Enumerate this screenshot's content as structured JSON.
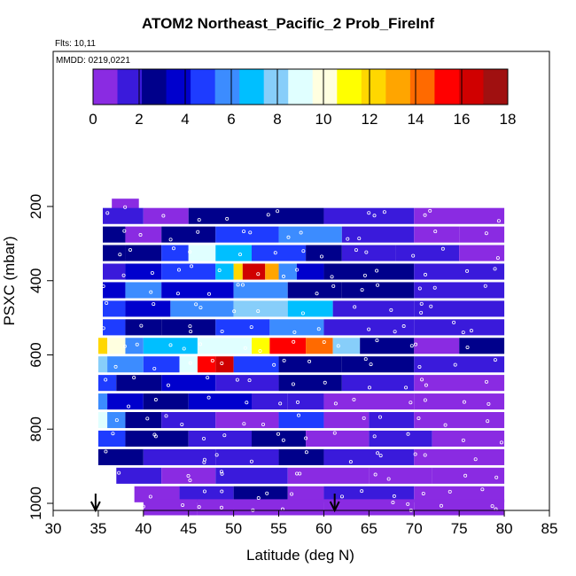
{
  "chart_data": {
    "type": "heatmap",
    "title": "ATOM2 Northeast_Pacific_2 Prob_FireInf",
    "note_flights": "Flts: 10,11",
    "note_dates": "MMDD: 0219,0221",
    "xlabel": "Latitude (deg N)",
    "ylabel": "PSXC (mbar)",
    "xlim": [
      30,
      85
    ],
    "ylim": [
      1000,
      80
    ],
    "y_inverted": true,
    "x_ticks": [
      30,
      35,
      40,
      45,
      50,
      55,
      60,
      65,
      70,
      75,
      80,
      85
    ],
    "y_ticks": [
      200,
      400,
      600,
      800,
      1000
    ],
    "colorbar": {
      "min": 0,
      "max": 18,
      "ticks": [
        0,
        2,
        4,
        6,
        8,
        10,
        12,
        14,
        16,
        18
      ],
      "colors": [
        "#8a2be2",
        "#3a1adb",
        "#00008b",
        "#0000cd",
        "#1e3cff",
        "#3c8cff",
        "#00bfff",
        "#87cefa",
        "#e0ffff",
        "#ffffe0",
        "#ffff00",
        "#ffd700",
        "#ffa500",
        "#ff6a00",
        "#ff0000",
        "#d00000",
        "#a01010"
      ]
    },
    "arrow_markers_lat": [
      34.7,
      61.2
    ],
    "rows": [
      {
        "p": 200,
        "cells": [
          [
            36.5,
            39.5,
            0.5
          ]
        ]
      },
      {
        "p": 225,
        "cells": [
          [
            35.5,
            40,
            1.5
          ],
          [
            40,
            45,
            0.8
          ],
          [
            45,
            60,
            2.5
          ],
          [
            60,
            70,
            2
          ],
          [
            70,
            80,
            0.8
          ]
        ]
      },
      {
        "p": 275,
        "cells": [
          [
            35.5,
            38,
            2.5
          ],
          [
            38,
            42,
            1
          ],
          [
            42,
            48,
            3
          ],
          [
            48,
            55,
            5
          ],
          [
            55,
            62,
            6
          ],
          [
            62,
            70,
            2
          ],
          [
            70,
            75,
            1
          ],
          [
            75,
            80,
            0.5
          ]
        ]
      },
      {
        "p": 325,
        "cells": [
          [
            35.5,
            38,
            3
          ],
          [
            38,
            42,
            2.5
          ],
          [
            42,
            45,
            5
          ],
          [
            45,
            48,
            8.5
          ],
          [
            48,
            52,
            7
          ],
          [
            52,
            58,
            5
          ],
          [
            58,
            62,
            3
          ],
          [
            62,
            68,
            2
          ],
          [
            68,
            75,
            1.5
          ],
          [
            75,
            80,
            0.8
          ]
        ]
      },
      {
        "p": 375,
        "cells": [
          [
            35.5,
            38,
            2
          ],
          [
            38,
            42,
            3.5
          ],
          [
            42,
            48,
            5
          ],
          [
            48,
            50,
            7
          ],
          [
            50,
            51,
            12
          ],
          [
            51,
            53.5,
            16
          ],
          [
            53.5,
            55,
            13
          ],
          [
            55,
            57,
            6
          ],
          [
            57,
            60,
            4
          ],
          [
            60,
            70,
            3
          ],
          [
            70,
            80,
            2
          ]
        ]
      },
      {
        "p": 425,
        "cells": [
          [
            35.5,
            38,
            4
          ],
          [
            38,
            42,
            6
          ],
          [
            42,
            50,
            4
          ],
          [
            50,
            56,
            5.5
          ],
          [
            56,
            62,
            3
          ],
          [
            62,
            70,
            2.5
          ],
          [
            70,
            80,
            1.5
          ]
        ]
      },
      {
        "p": 475,
        "cells": [
          [
            35.5,
            38,
            5
          ],
          [
            38,
            43,
            4
          ],
          [
            43,
            50,
            6
          ],
          [
            50,
            56,
            8
          ],
          [
            56,
            61,
            6.5
          ],
          [
            61,
            70,
            2
          ],
          [
            70,
            80,
            1.5
          ]
        ]
      },
      {
        "p": 525,
        "cells": [
          [
            35.5,
            38,
            5
          ],
          [
            38,
            42,
            3
          ],
          [
            42,
            48,
            2.5
          ],
          [
            48,
            54,
            5
          ],
          [
            54,
            60,
            6
          ],
          [
            60,
            70,
            2
          ],
          [
            70,
            80,
            1.5
          ]
        ]
      },
      {
        "p": 575,
        "cells": [
          [
            35,
            36,
            12
          ],
          [
            36,
            38,
            10
          ],
          [
            38,
            40,
            6
          ],
          [
            40,
            46,
            7
          ],
          [
            46,
            52,
            8.5
          ],
          [
            52,
            54,
            11
          ],
          [
            54,
            58,
            15
          ],
          [
            58,
            61,
            14
          ],
          [
            61,
            64,
            8
          ],
          [
            64,
            70,
            2.5
          ],
          [
            70,
            75,
            1
          ],
          [
            75,
            80,
            3
          ]
        ]
      },
      {
        "p": 625,
        "cells": [
          [
            35,
            36,
            8
          ],
          [
            36,
            40,
            6
          ],
          [
            40,
            44,
            5
          ],
          [
            44,
            46,
            9
          ],
          [
            46,
            48,
            15
          ],
          [
            48,
            50,
            16
          ],
          [
            50,
            55,
            5
          ],
          [
            55,
            62,
            3
          ],
          [
            62,
            70,
            2.5
          ],
          [
            70,
            80,
            1.5
          ]
        ]
      },
      {
        "p": 675,
        "cells": [
          [
            35,
            37,
            5
          ],
          [
            37,
            42,
            3
          ],
          [
            42,
            48,
            4
          ],
          [
            48,
            55,
            2
          ],
          [
            55,
            62,
            3
          ],
          [
            62,
            70,
            1.5
          ],
          [
            70,
            80,
            1
          ]
        ]
      },
      {
        "p": 725,
        "cells": [
          [
            35,
            36,
            6
          ],
          [
            36,
            40,
            4
          ],
          [
            40,
            45,
            2.5
          ],
          [
            45,
            52,
            3.5
          ],
          [
            52,
            56,
            1.5
          ],
          [
            56,
            60,
            2
          ],
          [
            60,
            70,
            0.8
          ],
          [
            70,
            80,
            0.5
          ]
        ]
      },
      {
        "p": 775,
        "cells": [
          [
            35,
            36,
            9
          ],
          [
            36,
            38,
            6
          ],
          [
            38,
            42,
            2.5
          ],
          [
            42,
            48,
            1.5
          ],
          [
            48,
            55,
            0.8
          ],
          [
            55,
            60,
            5
          ],
          [
            60,
            65,
            1
          ],
          [
            65,
            70,
            2
          ],
          [
            70,
            80,
            1
          ]
        ]
      },
      {
        "p": 825,
        "cells": [
          [
            35,
            38,
            5
          ],
          [
            38,
            45,
            3
          ],
          [
            45,
            52,
            2
          ],
          [
            52,
            58,
            3
          ],
          [
            58,
            65,
            1
          ],
          [
            65,
            72,
            1.5
          ],
          [
            72,
            80,
            0.8
          ]
        ]
      },
      {
        "p": 875,
        "cells": [
          [
            35,
            40,
            2.5
          ],
          [
            40,
            48,
            1.5
          ],
          [
            48,
            55,
            2
          ],
          [
            55,
            60,
            2.5
          ],
          [
            60,
            70,
            1.5
          ],
          [
            70,
            80,
            1
          ]
        ]
      },
      {
        "p": 925,
        "cells": [
          [
            37,
            42,
            2
          ],
          [
            42,
            48,
            1
          ],
          [
            48,
            56,
            1.5
          ],
          [
            56,
            65,
            1
          ],
          [
            65,
            72,
            0.8
          ],
          [
            72,
            80,
            0.5
          ]
        ]
      },
      {
        "p": 975,
        "cells": [
          [
            39,
            44,
            1
          ],
          [
            44,
            50,
            1.5
          ],
          [
            50,
            56,
            2.5
          ],
          [
            56,
            60,
            0.6
          ],
          [
            60,
            70,
            1.2
          ],
          [
            70,
            80,
            0.8
          ]
        ]
      },
      {
        "p": 1010,
        "cells": [
          [
            40,
            46,
            0.8
          ],
          [
            46,
            52,
            0.5
          ],
          [
            52,
            60,
            1
          ],
          [
            60,
            70,
            0.5
          ],
          [
            70,
            80,
            0.8
          ]
        ]
      }
    ]
  }
}
